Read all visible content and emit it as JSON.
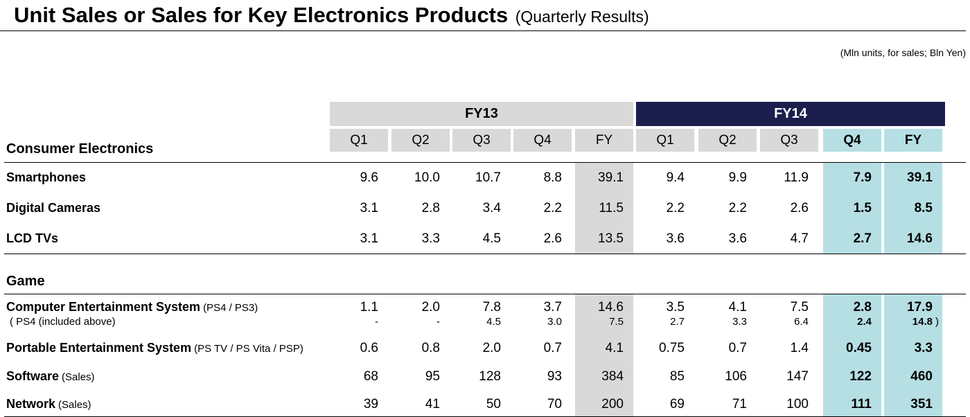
{
  "title": {
    "main": "Unit Sales or Sales for Key Electronics Products",
    "sub": "(Quarterly Results)"
  },
  "units_note": "(Mln units, for sales; Bln Yen)",
  "fiscal_years": [
    "FY13",
    "FY14"
  ],
  "quarter_headers": [
    "Q1",
    "Q2",
    "Q3",
    "Q4",
    "FY",
    "Q1",
    "Q2",
    "Q3",
    "Q4",
    "FY"
  ],
  "sections": [
    {
      "name": "Consumer Electronics",
      "rows": [
        {
          "label": "Smartphones",
          "note": "",
          "values": [
            "9.6",
            "10.0",
            "10.7",
            "8.8",
            "39.1",
            "9.4",
            "9.9",
            "11.9",
            "7.9",
            "39.1"
          ]
        },
        {
          "label": "Digital Cameras",
          "note": "",
          "values": [
            "3.1",
            "2.8",
            "3.4",
            "2.2",
            "11.5",
            "2.2",
            "2.2",
            "2.6",
            "1.5",
            "8.5"
          ]
        },
        {
          "label": "LCD TVs",
          "note": "",
          "values": [
            "3.1",
            "3.3",
            "4.5",
            "2.6",
            "13.5",
            "3.6",
            "3.6",
            "4.7",
            "2.7",
            "14.6"
          ]
        }
      ]
    },
    {
      "name": "Game",
      "rows": [
        {
          "label": "Computer Entertainment System",
          "note": "(PS4 / PS3)",
          "values": [
            "1.1",
            "2.0",
            "7.8",
            "3.7",
            "14.6",
            "3.5",
            "4.1",
            "7.5",
            "2.8",
            "17.9"
          ],
          "sub_label": "( PS4 (included above)",
          "sub_values": [
            "-",
            "-",
            "4.5",
            "3.0",
            "7.5",
            "2.7",
            "3.3",
            "6.4",
            "2.4",
            "14.8"
          ],
          "sub_close": ")"
        },
        {
          "label": "Portable Entertainment System",
          "note": "(PS TV / PS Vita / PSP)",
          "values": [
            "0.6",
            "0.8",
            "2.0",
            "0.7",
            "4.1",
            "0.75",
            "0.7",
            "1.4",
            "0.45",
            "3.3"
          ]
        },
        {
          "label": "Software",
          "note": "(Sales)",
          "values": [
            "68",
            "95",
            "128",
            "93",
            "384",
            "85",
            "106",
            "147",
            "122",
            "460"
          ]
        },
        {
          "label": "Network",
          "note": "(Sales)",
          "values": [
            "39",
            "41",
            "50",
            "70",
            "200",
            "69",
            "71",
            "100",
            "111",
            "351"
          ]
        }
      ]
    }
  ],
  "colors": {
    "fy13_header": "#d9d9d9",
    "fy14_header": "#1c1e4e",
    "fy_column": "#d9d9d9",
    "highlight_column": "#b6dfe3"
  }
}
